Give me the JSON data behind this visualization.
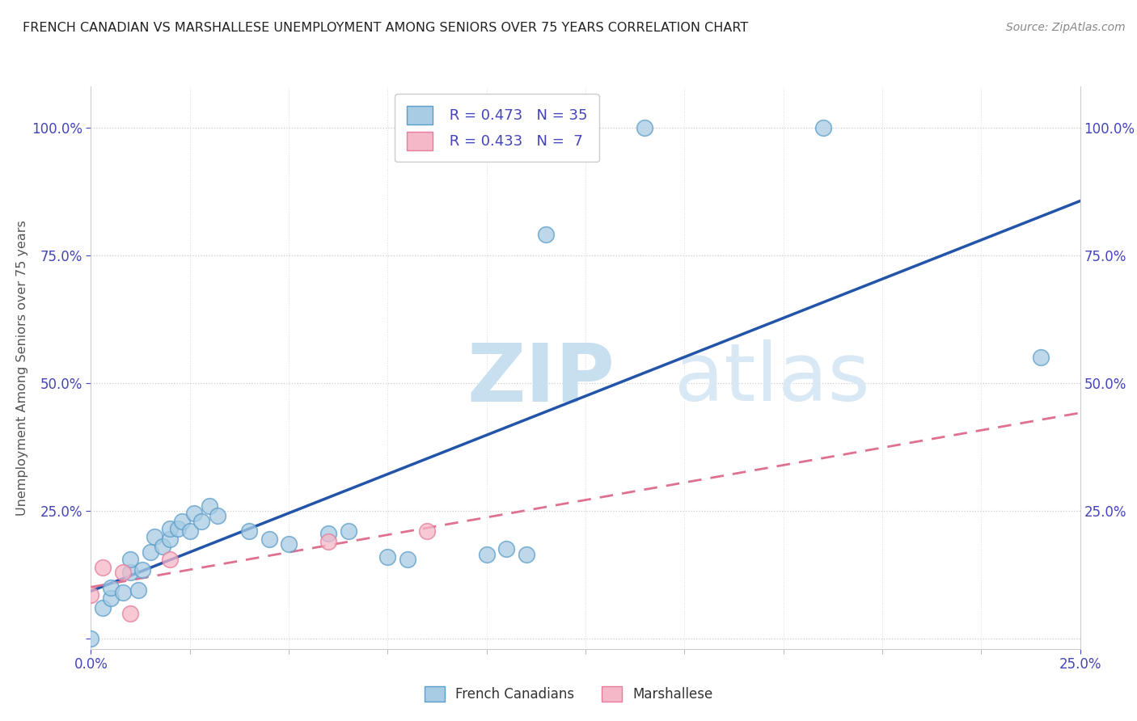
{
  "title": "FRENCH CANADIAN VS MARSHALLESE UNEMPLOYMENT AMONG SENIORS OVER 75 YEARS CORRELATION CHART",
  "source": "Source: ZipAtlas.com",
  "ylabel": "Unemployment Among Seniors over 75 years",
  "yticks_labels": [
    "",
    "25.0%",
    "50.0%",
    "75.0%",
    "100.0%"
  ],
  "ytick_vals": [
    0.0,
    0.25,
    0.5,
    0.75,
    1.0
  ],
  "xtick_show": [
    "0.0%",
    "25.0%"
  ],
  "xtick_show_vals": [
    0.0,
    0.25
  ],
  "xmin": 0.0,
  "xmax": 0.25,
  "ymin": -0.02,
  "ymax": 1.08,
  "watermark_zip": "ZIP",
  "watermark_atlas": "atlas",
  "legend_r1": "R = 0.473",
  "legend_n1": "N = 35",
  "legend_r2": "R = 0.433",
  "legend_n2": "N =  7",
  "fc_color": "#a8cce4",
  "fc_edge": "#5b9dc9",
  "ma_color": "#f4b8c8",
  "ma_edge": "#e87a9a",
  "line_fc_color": "#2255aa",
  "line_ma_color": "#e07090",
  "french_canadian_points": [
    [
      0.0,
      0.0
    ],
    [
      0.003,
      0.06
    ],
    [
      0.005,
      0.08
    ],
    [
      0.005,
      0.1
    ],
    [
      0.008,
      0.09
    ],
    [
      0.01,
      0.13
    ],
    [
      0.01,
      0.155
    ],
    [
      0.012,
      0.095
    ],
    [
      0.013,
      0.135
    ],
    [
      0.015,
      0.17
    ],
    [
      0.016,
      0.2
    ],
    [
      0.018,
      0.18
    ],
    [
      0.02,
      0.195
    ],
    [
      0.02,
      0.215
    ],
    [
      0.022,
      0.215
    ],
    [
      0.023,
      0.23
    ],
    [
      0.025,
      0.21
    ],
    [
      0.026,
      0.245
    ],
    [
      0.028,
      0.23
    ],
    [
      0.03,
      0.26
    ],
    [
      0.032,
      0.24
    ],
    [
      0.04,
      0.21
    ],
    [
      0.045,
      0.195
    ],
    [
      0.05,
      0.185
    ],
    [
      0.06,
      0.205
    ],
    [
      0.065,
      0.21
    ],
    [
      0.075,
      0.16
    ],
    [
      0.08,
      0.155
    ],
    [
      0.1,
      0.165
    ],
    [
      0.105,
      0.175
    ],
    [
      0.11,
      0.165
    ],
    [
      0.115,
      0.79
    ],
    [
      0.14,
      1.0
    ],
    [
      0.185,
      1.0
    ],
    [
      0.24,
      0.55
    ]
  ],
  "marshallese_points": [
    [
      0.0,
      0.085
    ],
    [
      0.003,
      0.14
    ],
    [
      0.008,
      0.13
    ],
    [
      0.01,
      0.05
    ],
    [
      0.02,
      0.155
    ],
    [
      0.06,
      0.19
    ],
    [
      0.085,
      0.21
    ]
  ]
}
